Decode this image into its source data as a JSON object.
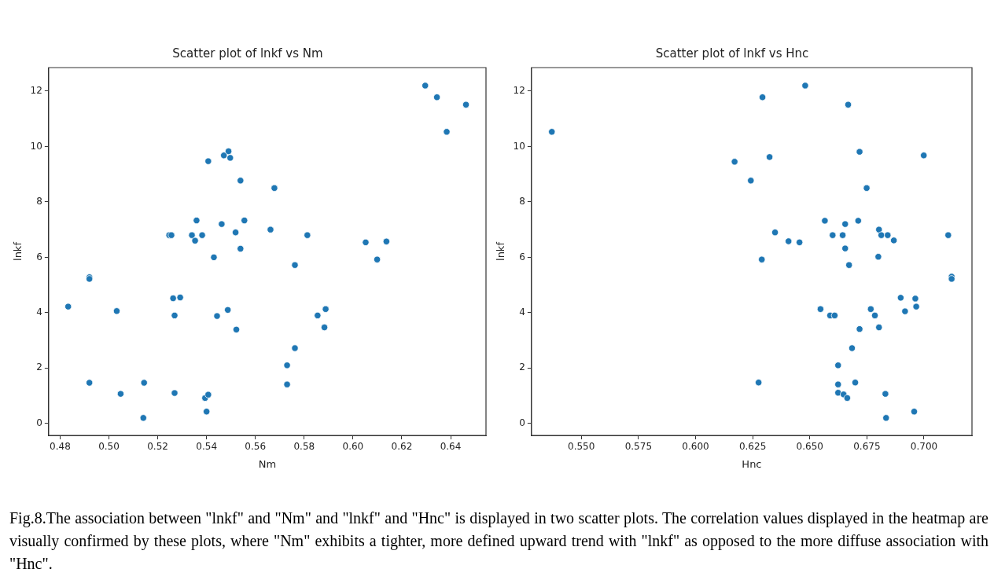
{
  "chart_data": [
    {
      "type": "scatter",
      "title": "Scatter plot of lnkf vs Nm",
      "xlabel": "Nm",
      "ylabel": "lnkf",
      "color": "#1f77b4",
      "marker": "circle",
      "grid": false,
      "x": [
        0.4833,
        0.492,
        0.492,
        0.492,
        0.5032,
        0.5048,
        0.5144,
        0.5141,
        0.5247,
        0.5256,
        0.5263,
        0.5269,
        0.5269,
        0.5292,
        0.534,
        0.5359,
        0.5353,
        0.5382,
        0.5407,
        0.5394,
        0.5407,
        0.54,
        0.543,
        0.5443,
        0.5462,
        0.5471,
        0.549,
        0.5497,
        0.5487,
        0.5519,
        0.5539,
        0.5539,
        0.5555,
        0.5522,
        0.5678,
        0.5662,
        0.5813,
        0.5762,
        0.5855,
        0.5888,
        0.5883,
        0.5762,
        0.573,
        0.573,
        0.6052,
        0.6137,
        0.6099,
        0.6296,
        0.6344,
        0.6463,
        0.6384
      ],
      "values": [
        4.22,
        5.28,
        5.22,
        1.47,
        4.06,
        1.07,
        1.47,
        0.2,
        6.8,
        6.8,
        4.52,
        3.9,
        1.1,
        4.55,
        6.8,
        7.33,
        6.6,
        6.8,
        9.47,
        0.92,
        1.04,
        0.43,
        6.0,
        3.88,
        7.2,
        9.68,
        9.83,
        9.59,
        4.1,
        6.9,
        8.77,
        6.31,
        7.33,
        3.39,
        8.5,
        7.0,
        6.8,
        5.72,
        3.9,
        4.13,
        3.47,
        2.72,
        2.1,
        1.41,
        6.54,
        6.57,
        5.92,
        12.2,
        11.78,
        11.51,
        10.53
      ],
      "xlim": [
        0.4753,
        0.6545
      ],
      "ylim": [
        -0.43,
        12.85
      ],
      "xticks": [
        {
          "value": 0.48,
          "label": "0.48"
        },
        {
          "value": 0.5,
          "label": "0.50"
        },
        {
          "value": 0.52,
          "label": "0.52"
        },
        {
          "value": 0.54,
          "label": "0.54"
        },
        {
          "value": 0.56,
          "label": "0.56"
        },
        {
          "value": 0.58,
          "label": "0.58"
        },
        {
          "value": 0.6,
          "label": "0.60"
        },
        {
          "value": 0.62,
          "label": "0.62"
        },
        {
          "value": 0.64,
          "label": "0.64"
        }
      ],
      "yticks": [
        0,
        2,
        4,
        6,
        8,
        10,
        12
      ]
    },
    {
      "type": "scatter",
      "title": "Scatter plot of lnkf vs Hnc",
      "xlabel": "Hnc",
      "ylabel": "lnkf",
      "color": "#1f77b4",
      "marker": "circle",
      "grid": false,
      "x": [
        0.5371,
        0.6171,
        0.6293,
        0.648,
        0.6668,
        0.6324,
        0.6242,
        0.6718,
        0.6999,
        0.6749,
        0.6566,
        0.6655,
        0.6712,
        0.6348,
        0.66,
        0.6644,
        0.6803,
        0.6813,
        0.6841,
        0.6868,
        0.6407,
        0.6455,
        0.7106,
        0.629,
        0.6655,
        0.68,
        0.6672,
        0.7121,
        0.7121,
        0.6898,
        0.6962,
        0.6966,
        0.6917,
        0.6547,
        0.6589,
        0.6609,
        0.6767,
        0.6785,
        0.6803,
        0.6718,
        0.6685,
        0.6624,
        0.6276,
        0.6624,
        0.6699,
        0.6624,
        0.6648,
        0.6664,
        0.6831,
        0.6957,
        0.6834
      ],
      "values": [
        10.53,
        9.45,
        11.78,
        12.2,
        11.51,
        9.62,
        8.77,
        9.81,
        9.68,
        8.5,
        7.32,
        7.2,
        7.32,
        6.9,
        6.8,
        6.8,
        7.0,
        6.8,
        6.8,
        6.61,
        6.58,
        6.54,
        6.8,
        5.92,
        6.32,
        6.02,
        5.72,
        5.3,
        5.22,
        4.54,
        4.51,
        4.22,
        4.05,
        4.13,
        3.9,
        3.9,
        4.13,
        3.9,
        3.47,
        3.41,
        2.72,
        2.1,
        1.48,
        1.41,
        1.48,
        1.11,
        1.05,
        0.92,
        1.07,
        0.43,
        0.2
      ],
      "xlim": [
        0.5282,
        0.721
      ],
      "ylim": [
        -0.43,
        12.85
      ],
      "xticks": [
        {
          "value": 0.55,
          "label": "0.550"
        },
        {
          "value": 0.575,
          "label": "0.575"
        },
        {
          "value": 0.6,
          "label": "0.600"
        },
        {
          "value": 0.625,
          "label": "0.625"
        },
        {
          "value": 0.65,
          "label": "0.650"
        },
        {
          "value": 0.675,
          "label": "0.675"
        },
        {
          "value": 0.7,
          "label": "0.700"
        }
      ],
      "yticks": [
        0,
        2,
        4,
        6,
        8,
        10,
        12
      ],
      "annotations": [
        "Fig.8.The association between \"lnkf\" and \"Nm\" and \"lnkf\" and \"Hnc\" is displayed in two scatter plots. The correlation values displayed in the heatmap are visually confirmed by these plots, where \"Nm\" exhibits a tighter, more defined upward trend with \"lnkf\" as opposed to the more diffuse association with \"Hnc\"."
      ]
    }
  ]
}
